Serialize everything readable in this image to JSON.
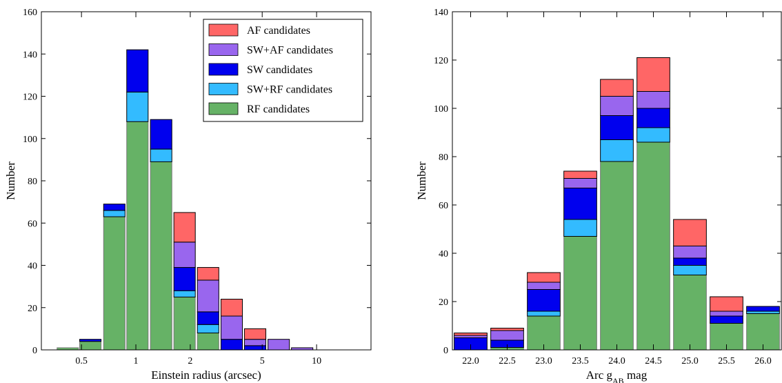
{
  "chart_data": [
    {
      "type": "bar",
      "stacked": true,
      "xlabel": "Einstein radius (arcsec)",
      "ylabel": "Number",
      "xscale": "log",
      "ylim": [
        0,
        160
      ],
      "yticks": [
        0,
        20,
        40,
        60,
        80,
        100,
        120,
        140,
        160
      ],
      "xtick_labels": [
        "0.5",
        "1",
        "2",
        "5",
        "10"
      ],
      "legend_placement": "top-right",
      "categories": [
        "0.42",
        "0.56",
        "0.76",
        "1.02",
        "1.38",
        "1.86",
        "2.51",
        "3.39",
        "4.57",
        "6.17",
        "8.32",
        "11.2",
        "15.1"
      ],
      "series": [
        {
          "name": "RF candidates",
          "color": "#66b266",
          "values": [
            1,
            4,
            63,
            108,
            89,
            25,
            8,
            0,
            0,
            0,
            0,
            0,
            0
          ]
        },
        {
          "name": "SW+RF candidates",
          "color": "#33bbff",
          "values": [
            0,
            0,
            3,
            14,
            6,
            3,
            4,
            0,
            0,
            0,
            0,
            0,
            0
          ]
        },
        {
          "name": "SW candidates",
          "color": "#0000ee",
          "values": [
            0,
            1,
            3,
            20,
            14,
            11,
            6,
            5,
            2,
            0,
            0,
            0,
            0
          ]
        },
        {
          "name": "SW+AF candidates",
          "color": "#9966ee",
          "values": [
            0,
            0,
            0,
            0,
            0,
            12,
            15,
            11,
            3,
            5,
            1,
            0,
            0
          ]
        },
        {
          "name": "AF candidates",
          "color": "#ff6666",
          "values": [
            0,
            0,
            0,
            0,
            0,
            14,
            6,
            8,
            5,
            0,
            0,
            0,
            0
          ]
        }
      ]
    },
    {
      "type": "bar",
      "stacked": true,
      "xlabel": "Arc g",
      "xlabel_sub": "AB",
      "xlabel_suffix": " mag",
      "ylabel": "Number",
      "ylim": [
        0,
        140
      ],
      "yticks": [
        0,
        20,
        40,
        60,
        80,
        100,
        120,
        140
      ],
      "categories": [
        "22.0",
        "22.5",
        "23.0",
        "23.5",
        "24.0",
        "24.5",
        "25.0",
        "25.5",
        "26.0"
      ],
      "series": [
        {
          "name": "RF candidates",
          "values": [
            0,
            1,
            14,
            47,
            78,
            86,
            31,
            11,
            15
          ]
        },
        {
          "name": "SW+RF candidates",
          "values": [
            0,
            0,
            2,
            7,
            9,
            6,
            4,
            0,
            1
          ]
        },
        {
          "name": "SW candidates",
          "values": [
            5,
            3,
            9,
            13,
            10,
            8,
            3,
            3,
            2
          ]
        },
        {
          "name": "SW+AF candidates",
          "values": [
            1,
            4,
            3,
            4,
            8,
            7,
            5,
            2,
            0
          ]
        },
        {
          "name": "AF candidates",
          "values": [
            1,
            1,
            4,
            3,
            7,
            14,
            11,
            6,
            0
          ]
        }
      ]
    }
  ]
}
